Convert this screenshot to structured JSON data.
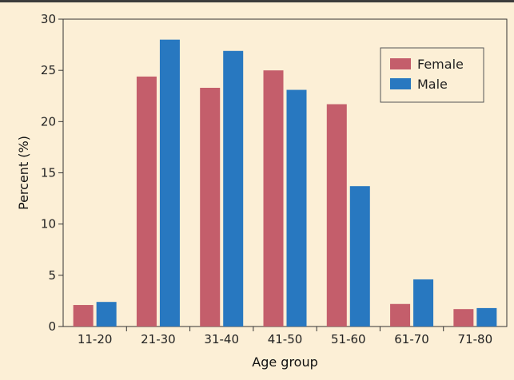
{
  "chart_data": {
    "type": "bar",
    "xlabel": "Age group",
    "ylabel": "Percent (%)",
    "categories": [
      "11-20",
      "21-30",
      "31-40",
      "41-50",
      "51-60",
      "61-70",
      "71-80"
    ],
    "ylim": [
      0,
      30
    ],
    "yticks": [
      0,
      5,
      10,
      15,
      20,
      25,
      30
    ],
    "grid": false,
    "legend_position": "top-right",
    "series": [
      {
        "name": "Female",
        "color": "#c45e6b",
        "values": [
          2.1,
          24.4,
          23.3,
          25.0,
          21.7,
          2.2,
          1.7
        ]
      },
      {
        "name": "Male",
        "color": "#2878c0",
        "values": [
          2.4,
          28.0,
          26.9,
          23.1,
          13.7,
          4.6,
          1.8
        ]
      }
    ]
  }
}
